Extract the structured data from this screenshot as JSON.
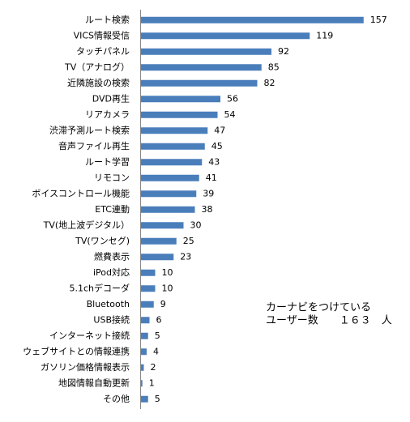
{
  "chart_data": {
    "type": "bar",
    "orientation": "horizontal",
    "categories": [
      "ルート検索",
      "VICS情報受信",
      "タッチパネル",
      "TV（アナログ）",
      "近隣施設の検索",
      "DVD再生",
      "リアカメラ",
      "渋滞予測ルート検索",
      "音声ファイル再生",
      "ルート学習",
      "リモコン",
      "ボイスコントロール機能",
      "ETC連動",
      "TV(地上波デジタル）",
      "TV(ワンセグ)",
      "燃費表示",
      "iPod対応",
      "5.1chデコーダ",
      "Bluetooth",
      "USB接続",
      "インターネット接続",
      "ウェブサイトとの情報連携",
      "ガソリン価格情報表示",
      "地図情報自動更新",
      "その他"
    ],
    "values": [
      157,
      119,
      92,
      85,
      82,
      56,
      54,
      47,
      45,
      43,
      41,
      39,
      38,
      30,
      25,
      23,
      10,
      10,
      9,
      6,
      5,
      4,
      2,
      1,
      5
    ],
    "color": "#4a7ebb",
    "xlim": [
      0,
      180
    ],
    "annotation": [
      "カーナビをつけている",
      "ユーザー数　　１６３　人"
    ]
  }
}
